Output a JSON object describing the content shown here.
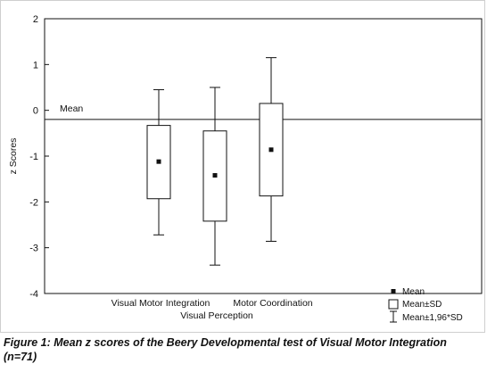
{
  "chart_data": {
    "type": "box",
    "ylabel": "z Scores",
    "ylim": [
      -4,
      2
    ],
    "yticks": [
      2,
      1,
      0,
      -1,
      -2,
      -3,
      -4
    ],
    "reference_line": {
      "label": "Mean",
      "value": -0.2
    },
    "x_labels": [
      {
        "text": "Visual Motor Integration"
      },
      {
        "text": "Motor Coordination"
      },
      {
        "text": "Visual Perception"
      }
    ],
    "series": [
      {
        "mean": -1.12,
        "sd_low": -1.93,
        "sd_high": -0.33,
        "whisker_low": -2.72,
        "whisker_high": 0.45
      },
      {
        "mean": -1.42,
        "sd_low": -2.42,
        "sd_high": -0.45,
        "whisker_low": -3.38,
        "whisker_high": 0.5
      },
      {
        "mean": -0.86,
        "sd_low": -1.87,
        "sd_high": 0.15,
        "whisker_low": -2.86,
        "whisker_high": 1.15
      }
    ],
    "legend": {
      "position": "bottom-right",
      "entries": [
        {
          "symbol": "square-marker",
          "label": "Mean"
        },
        {
          "symbol": "box",
          "label": "Mean±SD"
        },
        {
          "symbol": "whisker",
          "label": "Mean±1,96*SD"
        }
      ]
    },
    "grid": false
  },
  "caption": "Figure 1: Mean z scores of the Beery Developmental test of Visual Motor Integration (n=71)"
}
